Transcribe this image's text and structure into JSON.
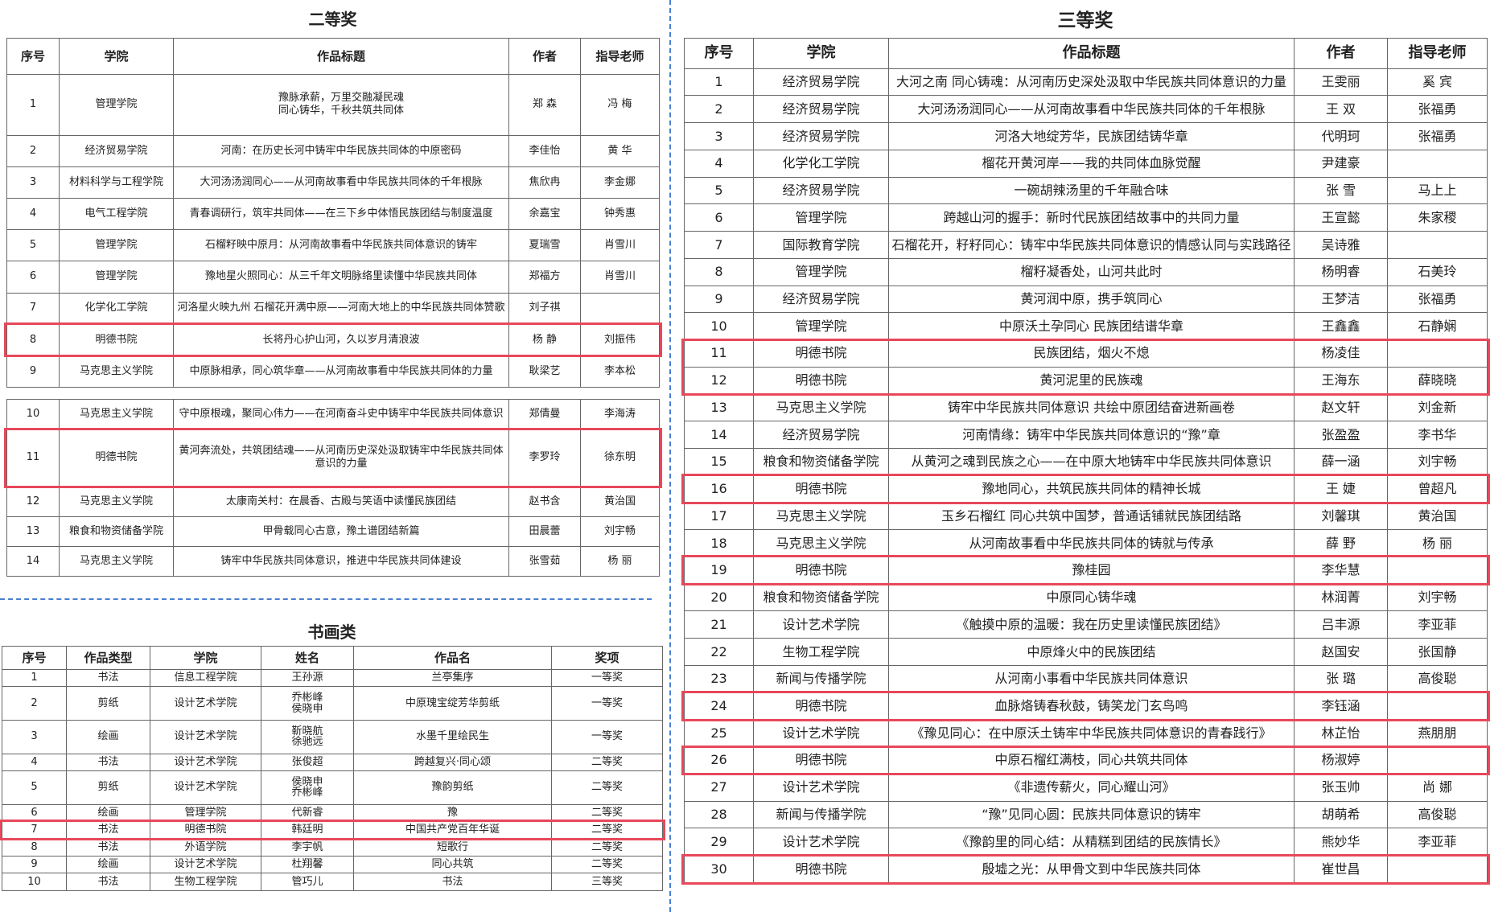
{
  "second_prize": {
    "title": "二等奖",
    "headers": [
      "序号",
      "学院",
      "作品标题",
      "作者",
      "指导老师"
    ],
    "rows": [
      [
        1,
        "管理学院",
        "豫脉承薪，万里交融凝民魂\n同心铸华，千秋共筑共同体",
        "郑 森",
        "冯 梅"
      ],
      [
        2,
        "经济贸易学院",
        "河南：在历史长河中铸牢中华民族共同体的中原密码",
        "李佳怡",
        "黄 华"
      ],
      [
        3,
        "材料科学与工程学院",
        "大河汤汤润同心——从河南故事看中华民族共同体的千年根脉",
        "焦欣冉",
        "李金娜"
      ],
      [
        4,
        "电气工程学院",
        "青春调研行，筑牢共同体——在三下乡中体悟民族团结与制度温度",
        "余嘉宝",
        "钟秀惠"
      ],
      [
        5,
        "管理学院",
        "石榴籽映中原月：从河南故事看中华民族共同体意识的铸牢",
        "夏瑞雪",
        "肖雪川"
      ],
      [
        6,
        "管理学院",
        "豫地星火照同心：从三千年文明脉络里读懂中华民族共同体",
        "郑福方",
        "肖雪川"
      ],
      [
        7,
        "化学化工学院",
        "河洛星火映九州 石榴花开满中原——河南大地上的中华民族共同体赞歌",
        "刘子祺",
        null
      ],
      [
        8,
        "明德书院",
        "长将丹心护山河，久以岁月清浪波",
        "杨 静",
        "刘振伟"
      ],
      [
        9,
        "马克思主义学院",
        "中原脉相承，同心筑华章——从河南故事看中华民族共同体的力量",
        "耿梁艺",
        "李本松"
      ],
      [
        10,
        "马克思主义学院",
        "守中原根魂，聚同心伟力——在河南奋斗史中铸牢中华民族共同体意识",
        "郑倩曼",
        "李海涛"
      ],
      [
        11,
        "明德书院",
        "黄河奔流处，共筑团结魂——从河南历史深处汲取铸牢中华民族共同体意识的力量",
        "李罗玲",
        "徐东明"
      ],
      [
        12,
        "马克思主义学院",
        "太康南关村：在晨香、古殿与笑语中读懂民族团结",
        "赵书含",
        "黄治国"
      ],
      [
        13,
        "粮食和物资储备学院",
        "甲骨载同心古意，豫土谱团结新篇",
        "田晨蕾",
        "刘宇畅"
      ],
      [
        14,
        "马克思主义学院",
        "铸牢中华民族共同体意识，推进中华民族共同体建设",
        "张雪茹",
        "杨 丽"
      ]
    ]
  },
  "calligraphy": {
    "title": "书画类",
    "headers": [
      "序号",
      "作品类型",
      "学院",
      "姓名",
      "作品名",
      "奖项"
    ],
    "rows": [
      [
        1,
        "书法",
        "信息工程学院",
        "王孙源",
        "兰亭集序",
        "一等奖"
      ],
      [
        2,
        "剪纸",
        "设计艺术学院",
        "乔彬峰\n侯晓申",
        "中原瑰宝绽芳华剪纸",
        "一等奖"
      ],
      [
        3,
        "绘画",
        "设计艺术学院",
        "靳晓航\n徐驰远",
        "水墨千里绘民生",
        "一等奖"
      ],
      [
        4,
        "书法",
        "设计艺术学院",
        "张俊超",
        "跨越复兴·同心颂",
        "二等奖"
      ],
      [
        5,
        "剪纸",
        "设计艺术学院",
        "侯晓申\n乔彬峰",
        "豫韵剪纸",
        "二等奖"
      ],
      [
        6,
        "绘画",
        "管理学院",
        "代新睿",
        "豫",
        "二等奖"
      ],
      [
        7,
        "书法",
        "明德书院",
        "韩廷明",
        "中国共产党百年华诞",
        "二等奖"
      ],
      [
        8,
        "书法",
        "外语学院",
        "李宇帆",
        "短歌行",
        "二等奖"
      ],
      [
        9,
        "绘画",
        "设计艺术学院",
        "杜翔馨",
        "同心共筑",
        "二等奖"
      ],
      [
        10,
        "书法",
        "生物工程学院",
        "管巧儿",
        "书法",
        "三等奖"
      ]
    ]
  },
  "third_prize": {
    "title": "三等奖",
    "headers": [
      "序号",
      "学院",
      "作品标题",
      "作者",
      "指导老师"
    ],
    "rows": [
      [
        1,
        "经济贸易学院",
        "大河之南 同心铸魂：从河南历史深处汲取中华民族共同体意识的力量",
        "王雯丽",
        "奚 宾"
      ],
      [
        2,
        "经济贸易学院",
        "大河汤汤润同心——从河南故事看中华民族共同体的千年根脉",
        "王 双",
        "张福勇"
      ],
      [
        3,
        "经济贸易学院",
        "河洛大地绽芳华，民族团结铸华章",
        "代明珂",
        "张福勇"
      ],
      [
        4,
        "化学化工学院",
        "榴花开黄河岸——我的共同体血脉觉醒",
        "尹建豪",
        null
      ],
      [
        5,
        "经济贸易学院",
        "一碗胡辣汤里的千年融合味",
        "张 雪",
        "马上上"
      ],
      [
        6,
        "管理学院",
        "跨越山河的握手：新时代民族团结故事中的共同力量",
        "王宣懿",
        "朱家稷"
      ],
      [
        7,
        "国际教育学院",
        "石榴花开，籽籽同心：铸牢中华民族共同体意识的情感认同与实践路径",
        "吴诗雅",
        null
      ],
      [
        8,
        "管理学院",
        "榴籽凝香处，山河共此时",
        "杨明睿",
        "石美玲"
      ],
      [
        9,
        "经济贸易学院",
        "黄河润中原，携手筑同心",
        "王梦洁",
        "张福勇"
      ],
      [
        10,
        "管理学院",
        "中原沃土孕同心 民族团结谱华章",
        "王鑫鑫",
        "石静娴"
      ],
      [
        11,
        "明德书院",
        "民族团结，烟火不熄",
        "杨凌佳",
        null
      ],
      [
        12,
        "明德书院",
        "黄河泥里的民族魂",
        "王海东",
        "薛晓晓"
      ],
      [
        13,
        "马克思主义学院",
        "铸牢中华民族共同体意识 共绘中原团结奋进新画卷",
        "赵文轩",
        "刘金新"
      ],
      [
        14,
        "经济贸易学院",
        "河南情缘：铸牢中华民族共同体意识的“豫”章",
        "张盈盈",
        "李书华"
      ],
      [
        15,
        "粮食和物资储备学院",
        "从黄河之魂到民族之心——在中原大地铸牢中华民族共同体意识",
        "薛一涵",
        "刘宇畅"
      ],
      [
        16,
        "明德书院",
        "豫地同心，共筑民族共同体的精神长城",
        "王 婕",
        "曾超凡"
      ],
      [
        17,
        "马克思主义学院",
        "玉乡石榴红 同心共筑中国梦，普通话铺就民族团结路",
        "刘馨琪",
        "黄治国"
      ],
      [
        18,
        "马克思主义学院",
        "从河南故事看中华民族共同体的铸就与传承",
        "薛 野",
        "杨 丽"
      ],
      [
        19,
        "明德书院",
        "豫桂园",
        "李华慧",
        null
      ],
      [
        20,
        "粮食和物资储备学院",
        "中原同心铸华魂",
        "林润菁",
        "刘宇畅"
      ],
      [
        21,
        "设计艺术学院",
        "《触摸中原的温暖：我在历史里读懂民族团结》",
        "吕丰源",
        "李亚菲"
      ],
      [
        22,
        "生物工程学院",
        "中原烽火中的民族团结",
        "赵国安",
        "张国静"
      ],
      [
        23,
        "新闻与传播学院",
        "从河南小事看中华民族共同体意识",
        "张 璐",
        "高俊聪"
      ],
      [
        24,
        "明德书院",
        "血脉烙铸春秋鼓，铸笑龙门玄鸟鸣",
        "李钰涵",
        null
      ],
      [
        25,
        "设计艺术学院",
        "《豫见同心：在中原沃土铸牢中华民族共同体意识的青春践行》",
        "林芷怡",
        "燕朋朋"
      ],
      [
        26,
        "明德书院",
        "中原石榴红满枝，同心共筑共同体",
        "杨淑婷",
        null
      ],
      [
        27,
        "设计艺术学院",
        "《非遗传薪火，同心耀山河》",
        "张玉帅",
        "尚 娜"
      ],
      [
        28,
        "新闻与传播学院",
        "“豫”见同心圆：民族共同体意识的铸牢",
        "胡萌希",
        "高俊聪"
      ],
      [
        29,
        "设计艺术学院",
        "《豫韵里的同心结：从精糕到团结的民族情长》",
        "熊妙华",
        "李亚菲"
      ],
      [
        30,
        "明德书院",
        "殷墟之光：从甲骨文到中华民族共同体",
        "崔世昌",
        null
      ]
    ]
  }
}
